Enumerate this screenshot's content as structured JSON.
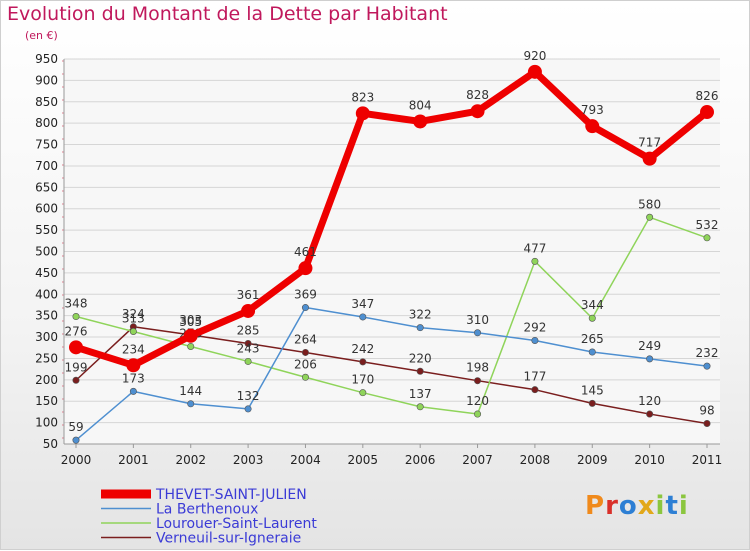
{
  "title": "Evolution du Montant de la Dette par Habitant",
  "subtitle": "(en €)",
  "logo": {
    "text": "Proxiti",
    "letter_colors": [
      "#f08a1c",
      "#d9302a",
      "#2d7fd4",
      "#e2a81a",
      "#8bc63f",
      "#2d7fd4",
      "#8bc63f"
    ]
  },
  "chart_data": {
    "type": "line",
    "title": "Evolution du Montant de la Dette par Habitant",
    "ylabel": "(en €)",
    "x": [
      "2000",
      "2001",
      "2002",
      "2003",
      "2004",
      "2005",
      "2006",
      "2007",
      "2008",
      "2009",
      "2010",
      "2011"
    ],
    "ylim": [
      50,
      950
    ],
    "yticks": [
      50,
      100,
      150,
      200,
      250,
      300,
      350,
      400,
      450,
      500,
      550,
      600,
      650,
      700,
      750,
      800,
      850,
      900,
      950
    ],
    "grid": "horizontal",
    "legend": "bottom-left",
    "series": [
      {
        "name": "THEVET-SAINT-JULIEN",
        "color": "#ee0000",
        "legend_text_color": "#3b3bd6",
        "values": [
          276,
          234,
          303,
          361,
          461,
          823,
          804,
          828,
          920,
          793,
          717,
          826
        ]
      },
      {
        "name": "La Berthenoux",
        "color": "#4e8fd0",
        "legend_text_color": "#3b3bd6",
        "values": [
          59,
          173,
          144,
          132,
          369,
          347,
          322,
          310,
          292,
          265,
          249,
          232
        ]
      },
      {
        "name": "Lourouer-Saint-Laurent",
        "color": "#8fd45a",
        "legend_text_color": "#3b3bd6",
        "values": [
          348,
          313,
          278,
          243,
          206,
          170,
          137,
          120,
          477,
          344,
          580,
          532
        ]
      },
      {
        "name": "Verneuil-sur-Igneraie",
        "color": "#7a1e1e",
        "legend_text_color": "#3b3bd6",
        "values": [
          199,
          324,
          305,
          285,
          264,
          242,
          220,
          198,
          177,
          145,
          120,
          98
        ]
      }
    ]
  }
}
